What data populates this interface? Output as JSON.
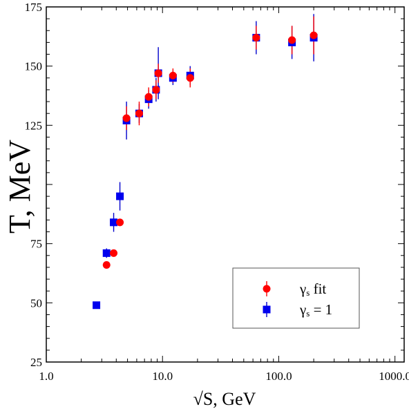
{
  "chart_data": {
    "type": "scatter",
    "title": "",
    "xlabel": "√S, GeV",
    "ylabel": "T, MeV",
    "xscale": "log",
    "xlim": [
      1.0,
      1200
    ],
    "ylim": [
      25,
      175
    ],
    "xticks": [
      1.0,
      10.0,
      100.0,
      1000.0
    ],
    "xtick_labels": [
      "1.0",
      "10.0",
      "100.0",
      "1000.0"
    ],
    "yticks": [
      25,
      50,
      75,
      125,
      150,
      175
    ],
    "ytick_labels": [
      "25",
      "50",
      "75",
      "125",
      "150",
      "175"
    ],
    "grid": false,
    "legend_position": "bottom-right",
    "series": [
      {
        "name": "γs fit",
        "label_main": "γ",
        "label_sub": "s",
        "label_rest": " fit",
        "marker": "circle",
        "color": "#ff0000",
        "errcolor": "#ff0000",
        "points": [
          {
            "x": 3.3,
            "y": 66,
            "err": 0
          },
          {
            "x": 3.8,
            "y": 71,
            "err": 0
          },
          {
            "x": 4.3,
            "y": 84,
            "err": 0
          },
          {
            "x": 4.9,
            "y": 128,
            "err": 5
          },
          {
            "x": 6.3,
            "y": 130,
            "err": 5
          },
          {
            "x": 7.6,
            "y": 137,
            "err": 4
          },
          {
            "x": 8.8,
            "y": 140,
            "err": 4
          },
          {
            "x": 9.2,
            "y": 147,
            "err": 4
          },
          {
            "x": 12.3,
            "y": 146,
            "err": 3
          },
          {
            "x": 17.3,
            "y": 145,
            "err": 4
          },
          {
            "x": 64,
            "y": 162,
            "err": 5
          },
          {
            "x": 130,
            "y": 161,
            "err": 6
          },
          {
            "x": 200,
            "y": 163,
            "err": 8
          }
        ]
      },
      {
        "name": "γs = 1",
        "label_main": "γ",
        "label_sub": "s",
        "label_rest": " = 1",
        "marker": "square",
        "color": "#0000ee",
        "errcolor": "#0000cc",
        "points": [
          {
            "x": 2.7,
            "y": 49,
            "err": 0
          },
          {
            "x": 3.3,
            "y": 71,
            "err": 2
          },
          {
            "x": 3.8,
            "y": 84,
            "err": 4
          },
          {
            "x": 4.3,
            "y": 95,
            "err": 6
          },
          {
            "x": 4.9,
            "y": 127,
            "err": 8
          },
          {
            "x": 6.3,
            "y": 130,
            "err": 4
          },
          {
            "x": 7.6,
            "y": 136,
            "err": 4
          },
          {
            "x": 8.8,
            "y": 140,
            "err": 5
          },
          {
            "x": 9.2,
            "y": 147,
            "err": 11
          },
          {
            "x": 12.3,
            "y": 145,
            "err": 3
          },
          {
            "x": 17.3,
            "y": 146,
            "err": 4
          },
          {
            "x": 64,
            "y": 162,
            "err": 7
          },
          {
            "x": 130,
            "y": 160,
            "err": 7
          },
          {
            "x": 200,
            "y": 162,
            "err": 10
          }
        ]
      }
    ]
  }
}
